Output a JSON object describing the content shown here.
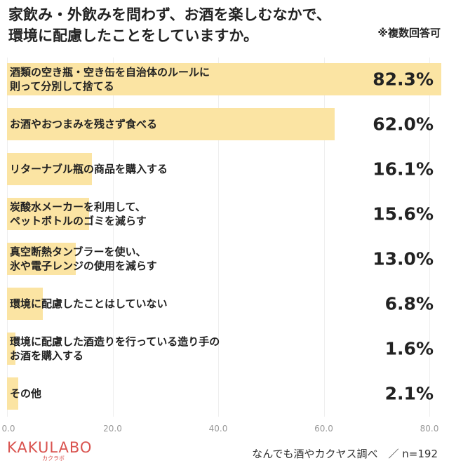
{
  "chart_data": {
    "type": "bar",
    "orientation": "horizontal",
    "title": [
      "家飲み・外飲みを問わず、お酒を楽しむなかで、",
      "環境に配慮したことをしていますか。"
    ],
    "subtitle": "※複数回答可",
    "categories": [
      "酒類の空き瓶・空き缶を自治体のルールに\n則って分別して捨てる",
      "お酒やおつまみを残さず食べる",
      "リターナブル瓶の商品を購入する",
      "炭酸水メーカーを利用して、\nペットボトルのゴミを減らす",
      "真空断熱タンブラーを使い、\n氷や電子レンジの使用を減らす",
      "環境に配慮したことはしていない",
      "環境に配慮した酒造りを行っている造り手の\nお酒を購入する",
      "その他"
    ],
    "values": [
      82.3,
      62.0,
      16.1,
      15.6,
      13.0,
      6.8,
      1.6,
      2.1
    ],
    "value_labels": [
      "82.3%",
      "62.0%",
      "16.1%",
      "15.6%",
      "13.0%",
      "6.8%",
      "1.6%",
      "2.1%"
    ],
    "color": "#fbe4a3",
    "xlim": [
      0,
      80
    ],
    "xticks": [
      {
        "value": 0,
        "label": "0.0"
      },
      {
        "value": 20,
        "label": "20.0"
      },
      {
        "value": 40,
        "label": "40.0"
      },
      {
        "value": 60,
        "label": "60.0"
      },
      {
        "value": 80,
        "label": "80.0"
      }
    ],
    "grid": true,
    "brand": "KAKULABO",
    "brand_sub": "カクラボ",
    "source": "なんでも酒やカクヤス調べ　／ n=192"
  }
}
